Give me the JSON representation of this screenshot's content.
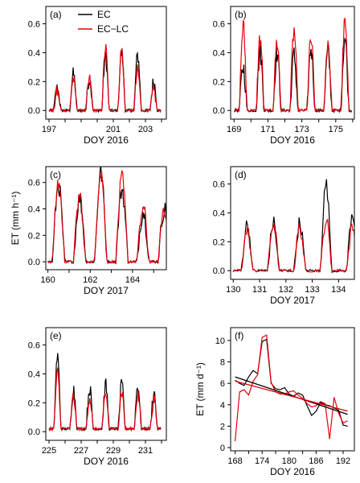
{
  "legend": {
    "items": [
      {
        "label": "EC",
        "color": "#000000"
      },
      {
        "label": "EC−LC",
        "color": "#e8000b"
      }
    ]
  },
  "colors": {
    "ec": "#000000",
    "eclc": "#e8000b"
  },
  "chart_data": [
    {
      "id": "a",
      "type": "line",
      "panel_label": "(a)",
      "xlabel": "DOY 2016",
      "ylabel": "",
      "xlim": [
        196.8,
        204.3
      ],
      "ylim": [
        -0.06,
        0.72
      ],
      "xticks": [
        197,
        199,
        201,
        203
      ],
      "xticklabels": [
        "197",
        "",
        "201",
        "203"
      ],
      "minor_xticks": [
        198,
        200,
        202,
        204
      ],
      "yticks": [
        0.0,
        0.2,
        0.4,
        0.6
      ],
      "yticklabels": [
        "0.0",
        "0.2",
        "0.4",
        "0.6"
      ],
      "gen": {
        "start": 197,
        "days": 7,
        "rise": 0.28,
        "fall": 0.75,
        "ec": [
          0.15,
          0.25,
          0.22,
          0.37,
          0.4,
          0.38,
          0.2
        ],
        "lc": [
          0.13,
          0.22,
          0.21,
          0.43,
          0.42,
          0.27,
          0.13
        ],
        "base": 0.0,
        "jitter": 0.035
      }
    },
    {
      "id": "b",
      "type": "line",
      "panel_label": "(b)",
      "xlabel": "DOY 2016",
      "ylabel": "",
      "xlim": [
        168.8,
        176.1
      ],
      "ylim": [
        -0.06,
        0.72
      ],
      "xticks": [
        169,
        171,
        173,
        175
      ],
      "xticklabels": [
        "169",
        "171",
        "173",
        "175"
      ],
      "minor_xticks": [
        170,
        172,
        174,
        176
      ],
      "yticks": [
        0.0,
        0.2,
        0.4,
        0.6
      ],
      "yticklabels": [
        "0.0",
        "0.2",
        "0.4",
        "0.6"
      ],
      "gen": {
        "start": 169,
        "days": 7,
        "rise": 0.3,
        "fall": 0.78,
        "ec": [
          0.3,
          0.4,
          0.4,
          0.38,
          0.43,
          0.4,
          0.5
        ],
        "lc": [
          0.58,
          0.5,
          0.48,
          0.55,
          0.49,
          0.48,
          0.6
        ],
        "base": 0.0,
        "jitter": 0.05
      }
    },
    {
      "id": "c",
      "type": "line",
      "panel_label": "(c)",
      "xlabel": "DOY 2017",
      "ylabel": "ET (mm h⁻¹)",
      "xlim": [
        159.9,
        165.6
      ],
      "ylim": [
        -0.06,
        0.72
      ],
      "xticks": [
        160,
        162,
        164
      ],
      "xticklabels": [
        "160",
        "162",
        "164"
      ],
      "minor_xticks": [
        161,
        163,
        165
      ],
      "yticks": [
        0.0,
        0.2,
        0.4,
        0.6
      ],
      "yticklabels": [
        "0.0",
        "0.2",
        "0.4",
        "0.6"
      ],
      "gen": {
        "start": 160,
        "days": 6,
        "rise": 0.2,
        "fall": 0.8,
        "ec": [
          0.58,
          0.48,
          0.68,
          0.55,
          0.38,
          0.4
        ],
        "lc": [
          0.6,
          0.5,
          0.7,
          0.62,
          0.4,
          0.42
        ],
        "base": 0.0,
        "jitter": 0.05
      }
    },
    {
      "id": "d",
      "type": "line",
      "panel_label": "(d)",
      "xlabel": "DOY 2017",
      "ylabel": "",
      "xlim": [
        129.9,
        134.6
      ],
      "ylim": [
        -0.06,
        0.72
      ],
      "xticks": [
        130,
        131,
        132,
        133,
        134
      ],
      "xticklabels": [
        "130",
        "131",
        "132",
        "133",
        "134"
      ],
      "minor_xticks": [],
      "yticks": [
        0.0,
        0.2,
        0.4,
        0.6
      ],
      "yticklabels": [
        "0.0",
        "0.2",
        "0.4",
        "0.6"
      ],
      "gen": {
        "start": 130,
        "days": 5,
        "rise": 0.3,
        "fall": 0.75,
        "ec": [
          0.32,
          0.33,
          0.33,
          0.6,
          0.4
        ],
        "lc": [
          0.28,
          0.33,
          0.3,
          0.35,
          0.3
        ],
        "base": 0.0,
        "jitter": 0.035
      }
    },
    {
      "id": "e",
      "type": "line",
      "panel_label": "(e)",
      "xlabel": "DOY 2016",
      "ylabel": "",
      "xlim": [
        224.8,
        232.3
      ],
      "ylim": [
        -0.06,
        0.72
      ],
      "xticks": [
        225,
        227,
        229,
        231
      ],
      "xticklabels": [
        "225",
        "227",
        "229",
        "231"
      ],
      "minor_xticks": [
        226,
        228,
        230,
        232
      ],
      "yticks": [
        0.0,
        0.2,
        0.4,
        0.6
      ],
      "yticklabels": [
        "0.0",
        "0.2",
        "0.4",
        "0.6"
      ],
      "gen": {
        "start": 225,
        "days": 7,
        "rise": 0.3,
        "fall": 0.75,
        "ec": [
          0.5,
          0.27,
          0.28,
          0.3,
          0.3,
          0.3,
          0.25
        ],
        "lc": [
          0.38,
          0.22,
          0.22,
          0.24,
          0.26,
          0.24,
          0.2
        ],
        "base": 0.02,
        "jitter": 0.035
      }
    },
    {
      "id": "f",
      "type": "line",
      "panel_label": "(f)",
      "xlabel": "DOY 2016",
      "ylabel": "ET (mm d⁻¹)",
      "xlim": [
        167,
        194.5
      ],
      "ylim": [
        -0.3,
        11.2
      ],
      "xticks": [
        168,
        174,
        180,
        186,
        192
      ],
      "xticklabels": [
        "168",
        "174",
        "180",
        "186",
        "192"
      ],
      "minor_xticks": [
        171,
        177,
        183,
        189
      ],
      "yticks": [
        0,
        2,
        4,
        6,
        8,
        10
      ],
      "yticklabels": [
        "0",
        "2",
        "4",
        "6",
        "8",
        "10"
      ],
      "x": [
        168,
        169,
        170,
        171,
        172,
        173,
        174,
        175,
        176,
        177,
        178,
        179,
        180,
        181,
        182,
        183,
        184,
        185,
        186,
        187,
        188,
        189,
        190,
        191,
        192,
        193
      ],
      "series": [
        {
          "key": "ec",
          "values": [
            6.3,
            6.0,
            5.8,
            6.6,
            7.2,
            6.9,
            9.9,
            10.1,
            6.0,
            5.5,
            5.4,
            5.6,
            5.0,
            4.8,
            5.1,
            4.9,
            3.9,
            3.0,
            3.4,
            4.2,
            4.0,
            3.9,
            3.7,
            3.5,
            2.1,
            2.0
          ]
        },
        {
          "key": "eclc",
          "values": [
            0.6,
            5.2,
            5.4,
            4.9,
            6.2,
            6.8,
            10.3,
            10.5,
            6.1,
            5.2,
            5.0,
            5.0,
            5.2,
            5.3,
            4.9,
            4.6,
            4.1,
            3.8,
            3.9,
            4.3,
            4.1,
            0.8,
            4.7,
            3.2,
            2.3,
            2.5
          ]
        }
      ],
      "trend": [
        {
          "key": "ec",
          "y_start": 6.6,
          "y_end": 3.1
        },
        {
          "key": "eclc",
          "y_start": 6.2,
          "y_end": 3.4
        }
      ]
    }
  ]
}
